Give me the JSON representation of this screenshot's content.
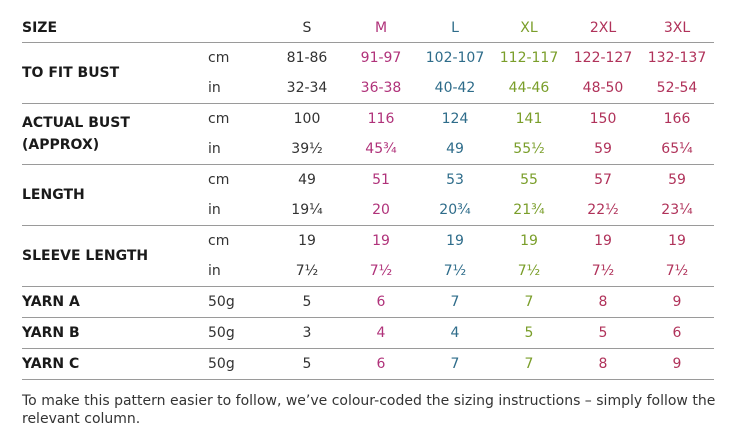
{
  "size_label": "SIZE",
  "sizes": [
    "S",
    "M",
    "L",
    "XL",
    "2XL",
    "3XL"
  ],
  "size_colors": [
    "#333333",
    "#b0327a",
    "#2e6c8a",
    "#7a9e2a",
    "#b0325a",
    "#b0325a"
  ],
  "rows": [
    {
      "label": [
        "TO FIT BUST"
      ],
      "units": [
        "cm",
        "in"
      ],
      "values": [
        [
          "81-86",
          "91-97",
          "102-107",
          "112-117",
          "122-127",
          "132-137"
        ],
        [
          "32-34",
          "36-38",
          "40-42",
          "44-46",
          "48-50",
          "52-54"
        ]
      ]
    },
    {
      "label": [
        "ACTUAL BUST",
        "(APPROX)"
      ],
      "units": [
        "cm",
        "in"
      ],
      "values": [
        [
          "100",
          "116",
          "124",
          "141",
          "150",
          "166"
        ],
        [
          "39½",
          "45¾",
          "49",
          "55½",
          "59",
          "65¼"
        ]
      ]
    },
    {
      "label": [
        "LENGTH"
      ],
      "units": [
        "cm",
        "in"
      ],
      "values": [
        [
          "49",
          "51",
          "53",
          "55",
          "57",
          "59"
        ],
        [
          "19¼",
          "20",
          "20¾",
          "21¾",
          "22½",
          "23¼"
        ]
      ]
    },
    {
      "label": [
        "SLEEVE LENGTH"
      ],
      "units": [
        "cm",
        "in"
      ],
      "values": [
        [
          "19",
          "19",
          "19",
          "19",
          "19",
          "19"
        ],
        [
          "7½",
          "7½",
          "7½",
          "7½",
          "7½",
          "7½"
        ]
      ]
    },
    {
      "label": [
        "YARN A"
      ],
      "units": [
        "50g"
      ],
      "values": [
        [
          "5",
          "6",
          "7",
          "7",
          "8",
          "9"
        ]
      ]
    },
    {
      "label": [
        "YARN B"
      ],
      "units": [
        "50g"
      ],
      "values": [
        [
          "3",
          "4",
          "4",
          "5",
          "5",
          "6"
        ]
      ]
    },
    {
      "label": [
        "YARN C"
      ],
      "units": [
        "50g"
      ],
      "values": [
        [
          "5",
          "6",
          "7",
          "7",
          "8",
          "9"
        ]
      ]
    }
  ],
  "footnote": "To make this pattern easier to follow, we’ve colour-coded the sizing instructions – simply follow the relevant column."
}
